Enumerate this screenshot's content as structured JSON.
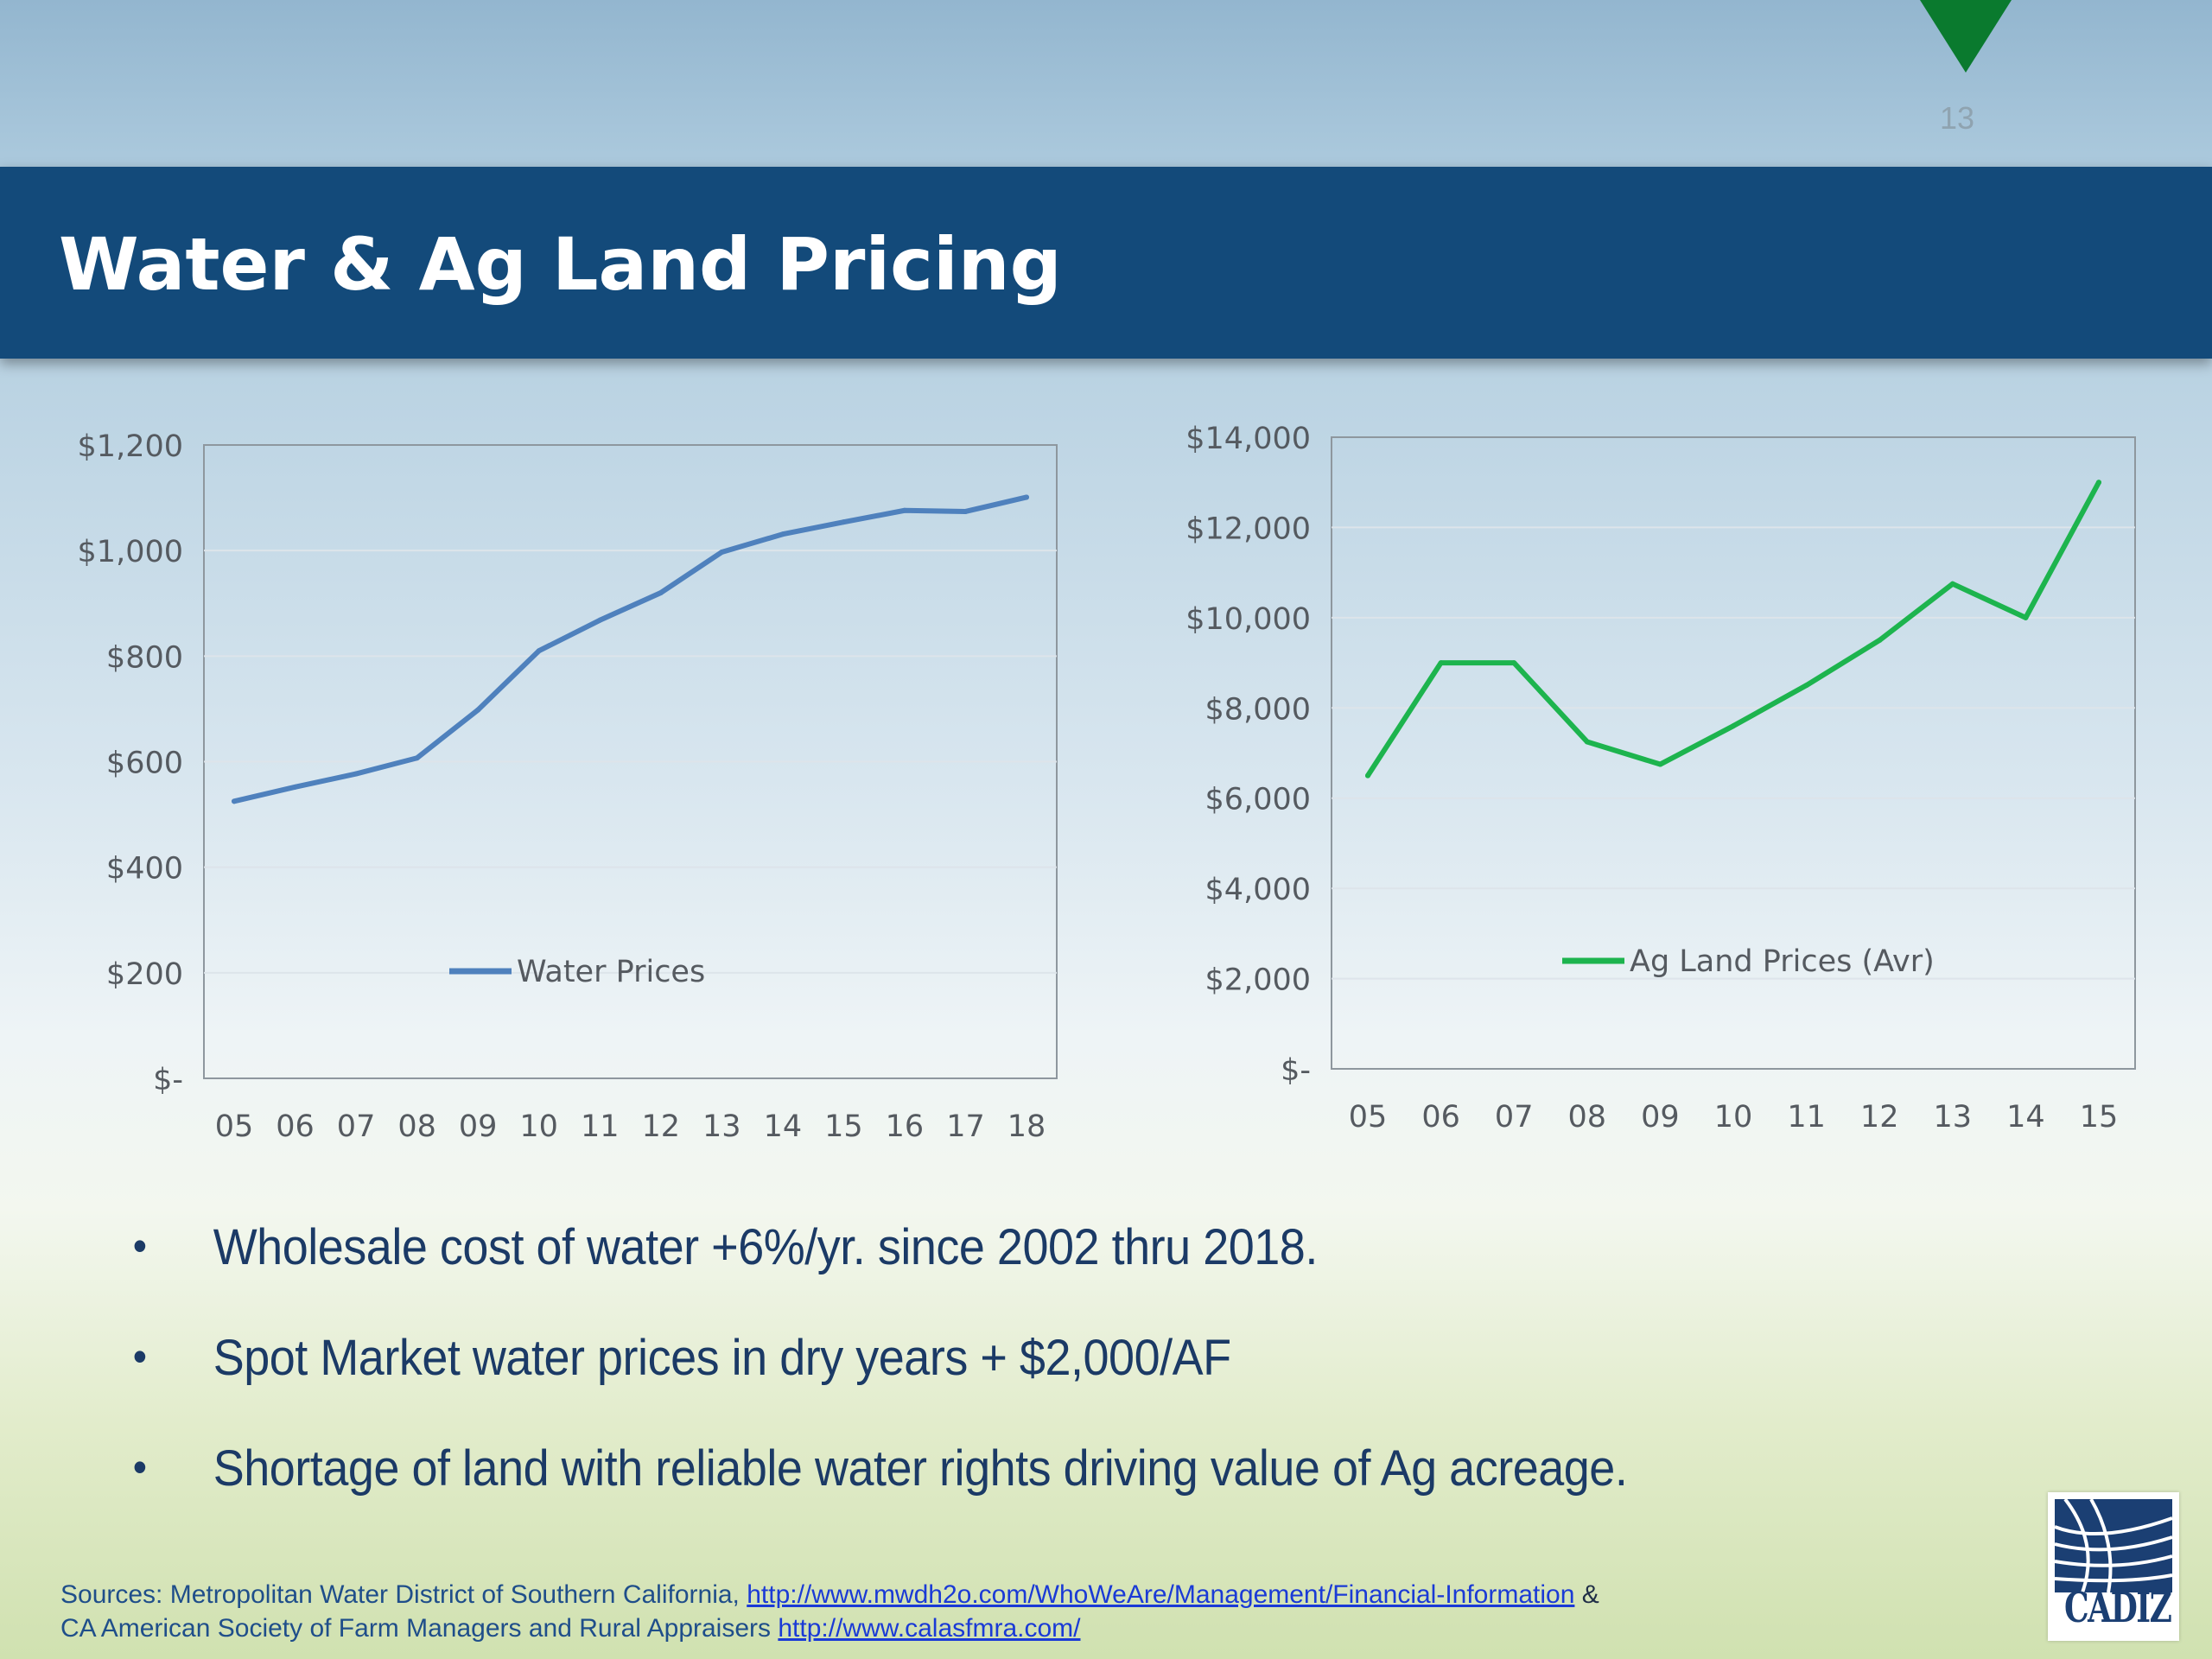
{
  "page_number": "13",
  "title": "Water & Ag Land Pricing",
  "colors": {
    "title_band": "#134a7a",
    "water_line": "#4f81bd",
    "ag_line": "#1db44e",
    "corner_triangle": "#0a7a2e",
    "bullet_text": "#1b3a66"
  },
  "chart_data": [
    {
      "type": "line",
      "categories": [
        "05",
        "06",
        "07",
        "08",
        "09",
        "10",
        "11",
        "12",
        "13",
        "14",
        "15",
        "16",
        "17",
        "18"
      ],
      "series": [
        {
          "name": "Water Prices",
          "values": [
            525,
            552,
            577,
            607,
            698,
            810,
            868,
            920,
            997,
            1031,
            1054,
            1076,
            1074,
            1101
          ],
          "color": "#4f81bd"
        }
      ],
      "title": "",
      "xlabel": "",
      "ylabel": "",
      "ylim": [
        0,
        1200
      ],
      "yticks": [
        "$-",
        "$200",
        "$400",
        "$600",
        "$800",
        "$1,000",
        "$1,200"
      ],
      "grid": true,
      "legend": "inside-bottom-center"
    },
    {
      "type": "line",
      "categories": [
        "05",
        "06",
        "07",
        "08",
        "09",
        "10",
        "11",
        "12",
        "13",
        "14",
        "15"
      ],
      "series": [
        {
          "name": "Ag Land Prices (Avr)",
          "values": [
            6500,
            9000,
            9000,
            7250,
            6750,
            7600,
            8500,
            9500,
            10750,
            10000,
            13000
          ],
          "color": "#1db44e"
        }
      ],
      "title": "",
      "xlabel": "",
      "ylabel": "",
      "ylim": [
        0,
        14000
      ],
      "yticks": [
        "$-",
        "$2,000",
        "$4,000",
        "$6,000",
        "$8,000",
        "$10,000",
        "$12,000",
        "$14,000"
      ],
      "grid": true,
      "legend": "inside-bottom-center"
    }
  ],
  "bullets": [
    "Wholesale cost of water +6%/yr. since 2002 thru 2018.",
    "Spot Market water prices in dry years + $2,000/AF",
    "Shortage of land with reliable water rights driving value of Ag acreage."
  ],
  "bullet_glyph": "•",
  "sources": {
    "line1_prefix": "Sources: Metropolitan Water District of Southern California,",
    "link1": "http://www.mwdh2o.com/WhoWeAre/Management/Financial-Information",
    "ampersand": "&",
    "line2_prefix": "CA American Society of Farm Managers and Rural Appraisers",
    "link2": "http://www.calasfmra.com/"
  },
  "logo": {
    "text": "CADIZ"
  }
}
